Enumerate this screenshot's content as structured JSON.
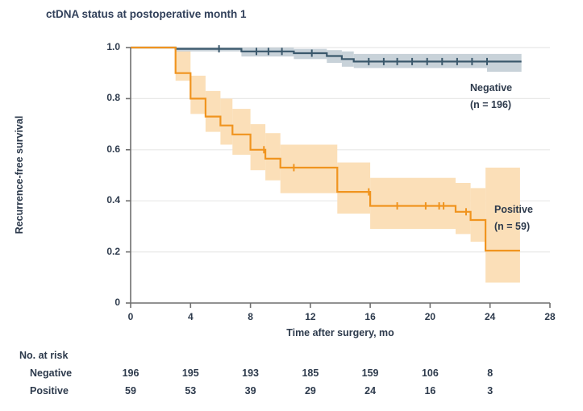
{
  "title": "ctDNA status at postoperative month 1",
  "chart_data": {
    "type": "line",
    "subtype": "kaplan-meier-step",
    "title": "ctDNA status at postoperative month 1",
    "xlabel": "Time after surgery, mo",
    "ylabel": "Recurrence-free survival",
    "xlim": [
      0,
      28
    ],
    "ylim": [
      0,
      1
    ],
    "xticks": [
      0,
      4,
      8,
      12,
      16,
      20,
      24,
      28
    ],
    "xtick_labels": [
      "0",
      "4",
      "8",
      "12",
      "16",
      "20",
      "24",
      "28"
    ],
    "yticks": [
      0,
      0.2,
      0.4,
      0.6,
      0.8,
      1.0
    ],
    "ytick_labels": [
      "0",
      "0.2",
      "0.4",
      "0.6",
      "0.8",
      "1.0"
    ],
    "grid": "horizontal-light",
    "legend_position": "right-of-curves",
    "colors": {
      "negative_line": "#3a586c",
      "negative_band": "#c8d2d9",
      "positive_line": "#f0941f",
      "positive_band": "#fbdfb8",
      "axis": "#6f6f6f",
      "gridline": "#e8e8e7",
      "text": "#2d3a4c",
      "title_text": "#31405a"
    },
    "series": [
      {
        "name": "Positive",
        "label_line1": "Positive",
        "label_line2": "(n = 59)",
        "color": "#f0941f",
        "band_color": "#fbdfb8",
        "start": [
          0,
          1.0
        ],
        "steps": [
          [
            3,
            0.9
          ],
          [
            4,
            0.8
          ],
          [
            5,
            0.73
          ],
          [
            6,
            0.695
          ],
          [
            6.8,
            0.66
          ],
          [
            8,
            0.6
          ],
          [
            9,
            0.565
          ],
          [
            10,
            0.53
          ],
          [
            13.8,
            0.435
          ],
          [
            16,
            0.38
          ],
          [
            21.7,
            0.357
          ],
          [
            22.7,
            0.325
          ],
          [
            23.7,
            0.205
          ]
        ],
        "end_t": 26,
        "censors": [
          [
            8.9,
            0.6
          ],
          [
            10.9,
            0.53
          ],
          [
            15.9,
            0.435
          ],
          [
            17.8,
            0.38
          ],
          [
            19.7,
            0.38
          ],
          [
            20.6,
            0.38
          ],
          [
            20.9,
            0.38
          ],
          [
            22.4,
            0.357
          ]
        ],
        "band": [
          [
            3,
            4,
            0.87,
            0.99
          ],
          [
            4,
            5,
            0.74,
            0.89
          ],
          [
            5,
            6,
            0.67,
            0.83
          ],
          [
            6,
            6.8,
            0.62,
            0.8
          ],
          [
            6.8,
            8,
            0.58,
            0.76
          ],
          [
            8,
            9,
            0.52,
            0.7
          ],
          [
            9,
            10,
            0.48,
            0.665
          ],
          [
            10,
            13.8,
            0.43,
            0.62
          ],
          [
            13.8,
            16,
            0.35,
            0.55
          ],
          [
            16,
            21.7,
            0.29,
            0.49
          ],
          [
            21.7,
            22.7,
            0.27,
            0.47
          ],
          [
            22.7,
            23.7,
            0.24,
            0.45
          ],
          [
            23.7,
            26,
            0.08,
            0.53
          ]
        ]
      },
      {
        "name": "Negative",
        "label_line1": "Negative",
        "label_line2": "(n = 196)",
        "color": "#3a586c",
        "band_color": "#c8d2d9",
        "start": [
          0,
          1.0
        ],
        "steps": [
          [
            3,
            0.995
          ],
          [
            7.4,
            0.985
          ],
          [
            10.9,
            0.978
          ],
          [
            13.1,
            0.967
          ],
          [
            14.1,
            0.955
          ],
          [
            14.9,
            0.945
          ]
        ],
        "end_t": 26.1,
        "censors": [
          [
            5.9,
            0.995
          ],
          [
            8.4,
            0.985
          ],
          [
            9.2,
            0.985
          ],
          [
            10.1,
            0.985
          ],
          [
            12.1,
            0.978
          ],
          [
            15.9,
            0.945
          ],
          [
            16.9,
            0.945
          ],
          [
            17.8,
            0.945
          ],
          [
            18.8,
            0.945
          ],
          [
            19.8,
            0.945
          ],
          [
            20.8,
            0.945
          ],
          [
            21.8,
            0.945
          ],
          [
            22.8,
            0.945
          ],
          [
            23.8,
            0.945
          ]
        ],
        "band": [
          [
            3,
            7.4,
            0.985,
            1.0
          ],
          [
            7.4,
            10.9,
            0.965,
            1.0
          ],
          [
            10.9,
            13.1,
            0.955,
            0.995
          ],
          [
            13.1,
            14.1,
            0.94,
            0.99
          ],
          [
            14.1,
            14.9,
            0.925,
            0.985
          ],
          [
            14.9,
            23.8,
            0.92,
            0.975
          ],
          [
            23.8,
            26.1,
            0.905,
            0.975
          ]
        ]
      }
    ],
    "risk_table": {
      "header": "No. at risk",
      "times": [
        0,
        4,
        8,
        12,
        16,
        20,
        24
      ],
      "rows": [
        {
          "label": "Negative",
          "values": [
            "196",
            "195",
            "193",
            "185",
            "159",
            "106",
            "8"
          ]
        },
        {
          "label": "Positive",
          "values": [
            "59",
            "53",
            "39",
            "29",
            "24",
            "16",
            "3"
          ]
        }
      ]
    }
  }
}
